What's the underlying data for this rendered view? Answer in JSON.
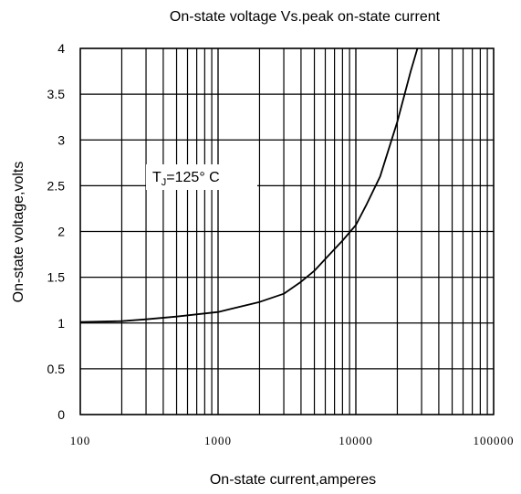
{
  "chart_data": {
    "type": "line",
    "title": "On-state voltage Vs.peak on-state current",
    "xlabel": "On-state current,amperes",
    "ylabel": "On-state voltage,volts",
    "x_scale": "log",
    "xlim": [
      100,
      100000
    ],
    "ylim": [
      0,
      4
    ],
    "x_ticks": [
      100,
      1000,
      10000,
      100000
    ],
    "x_tick_labels": [
      "100",
      "1000",
      "10000",
      "100000"
    ],
    "y_ticks": [
      0,
      0.5,
      1,
      1.5,
      2,
      2.5,
      3,
      3.5,
      4
    ],
    "y_tick_labels": [
      "0",
      "0.5",
      "1",
      "1.5",
      "2",
      "2.5",
      "3",
      "3.5",
      "4"
    ],
    "grid": true,
    "annotation": {
      "text_main": "T",
      "text_sub": "J",
      "text_rest": "=125°  C"
    },
    "series": [
      {
        "x": [
          100,
          200,
          300,
          500,
          1000,
          2000,
          3000,
          4000,
          5000,
          6000,
          8000,
          10000,
          12000,
          15000,
          20000,
          25000,
          28000
        ],
        "y": [
          1.01,
          1.02,
          1.04,
          1.07,
          1.12,
          1.23,
          1.32,
          1.45,
          1.57,
          1.7,
          1.9,
          2.07,
          2.3,
          2.6,
          3.2,
          3.75,
          4.0
        ]
      }
    ],
    "colors": {
      "line": "#000000",
      "grid": "#000000",
      "background": "#ffffff"
    }
  }
}
